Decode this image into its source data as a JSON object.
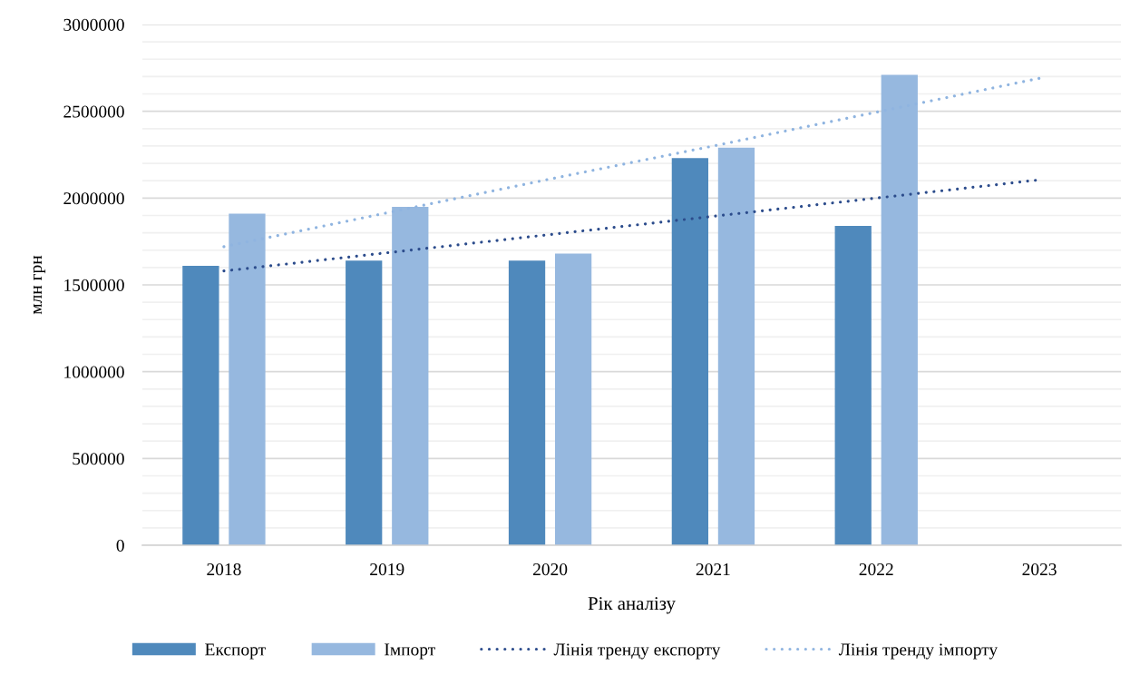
{
  "chart_data": {
    "type": "bar",
    "xlabel": "Рік аналізу",
    "ylabel": "млн грн",
    "categories": [
      "2018",
      "2019",
      "2020",
      "2021",
      "2022",
      "2023"
    ],
    "series": [
      {
        "name": "Експорт",
        "color": "#4f89bc",
        "values": [
          1610000,
          1640000,
          1640000,
          2230000,
          1840000,
          null
        ]
      },
      {
        "name": "Імпорт",
        "color": "#96b8df",
        "values": [
          1910000,
          1950000,
          1680000,
          2290000,
          2710000,
          null
        ]
      },
      {
        "name": "Лінія тренду експорту",
        "type": "line",
        "line_style": "dotted",
        "color": "#2c4c8c",
        "values": [
          1580000,
          1685000,
          1790000,
          1895000,
          2000000,
          2105000
        ]
      },
      {
        "name": "Лінія тренду імпорту",
        "type": "line",
        "line_style": "dotted",
        "color": "#8fb4e0",
        "values": [
          1720000,
          1915000,
          2110000,
          2300000,
          2495000,
          2690000
        ]
      }
    ],
    "ylim": [
      0,
      3000000
    ],
    "yticks": [
      0,
      {
        "value": 100000,
        "label": null
      },
      {
        "value": 200000,
        "label": null
      },
      {
        "value": 300000,
        "label": null
      },
      {
        "value": 400000,
        "label": null
      },
      500000,
      {
        "value": 600000,
        "label": null
      },
      {
        "value": 700000,
        "label": null
      },
      {
        "value": 800000,
        "label": null
      },
      {
        "value": 900000,
        "label": null
      },
      1000000,
      {
        "value": 1100000,
        "label": null
      },
      {
        "value": 1200000,
        "label": null
      },
      {
        "value": 1300000,
        "label": null
      },
      {
        "value": 1400000,
        "label": null
      },
      1500000,
      {
        "value": 1600000,
        "label": null
      },
      {
        "value": 1700000,
        "label": null
      },
      {
        "value": 1800000,
        "label": null
      },
      {
        "value": 1900000,
        "label": null
      },
      2000000,
      {
        "value": 2100000,
        "label": null
      },
      {
        "value": 2200000,
        "label": null
      },
      {
        "value": 2300000,
        "label": null
      },
      {
        "value": 2400000,
        "label": null
      },
      2500000,
      {
        "value": 2600000,
        "label": null
      },
      {
        "value": 2700000,
        "label": null
      },
      {
        "value": 2800000,
        "label": null
      },
      {
        "value": 2900000,
        "label": null
      },
      3000000
    ],
    "grid": "y",
    "legend": "bottom"
  }
}
